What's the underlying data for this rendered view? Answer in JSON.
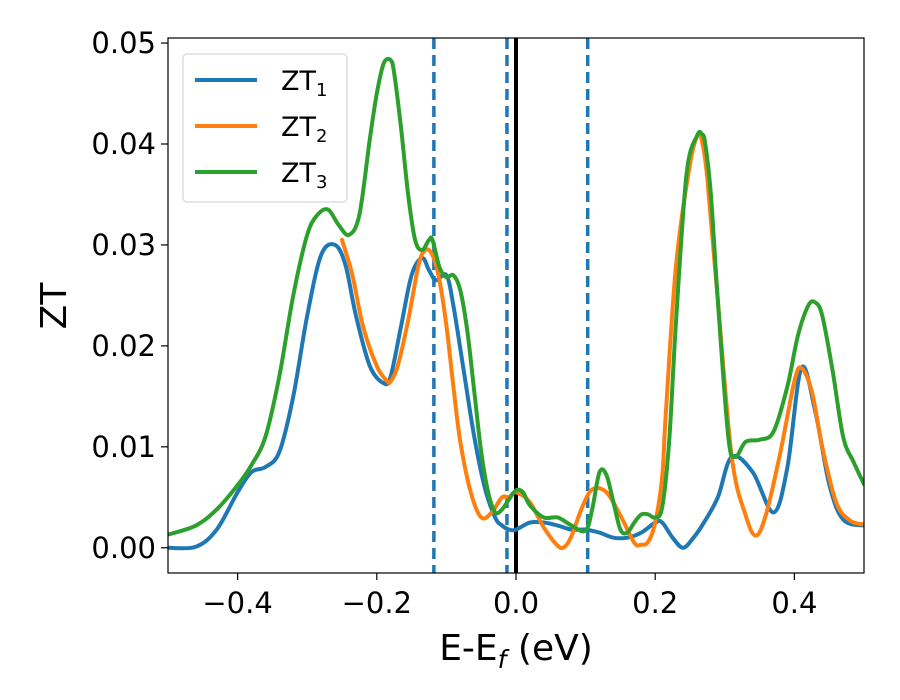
{
  "chart_data": {
    "type": "line",
    "xlabel": "E-E",
    "xlabel_sub": "f",
    "xlabel_unit": " (eV)",
    "ylabel": "ZT",
    "xlim": [
      -0.5,
      0.5
    ],
    "ylim": [
      -0.0025,
      0.0505
    ],
    "xticks": [
      -0.4,
      -0.2,
      0.0,
      0.2,
      0.4
    ],
    "xtick_labels": [
      "−0.4",
      "−0.2",
      "0.0",
      "0.2",
      "0.4"
    ],
    "yticks": [
      0.0,
      0.01,
      0.02,
      0.03,
      0.04,
      0.05
    ],
    "ytick_labels": [
      "0.00",
      "0.01",
      "0.02",
      "0.03",
      "0.04",
      "0.05"
    ],
    "grid": false,
    "legend_position": "top-left",
    "reference_lines": {
      "solid": {
        "x": 0.0,
        "color": "#000000"
      },
      "dashed": {
        "x": [
          -0.118,
          -0.013,
          0.103
        ],
        "color": "#1f77b4"
      }
    },
    "series": [
      {
        "name": "ZT",
        "name_sub": "1",
        "color": "#1f77b4",
        "x": [
          -0.5,
          -0.46,
          -0.43,
          -0.4,
          -0.38,
          -0.36,
          -0.34,
          -0.32,
          -0.3,
          -0.28,
          -0.26,
          -0.245,
          -0.23,
          -0.21,
          -0.19,
          -0.18,
          -0.165,
          -0.15,
          -0.135,
          -0.125,
          -0.115,
          -0.1,
          -0.09,
          -0.075,
          -0.06,
          -0.045,
          -0.03,
          -0.02,
          -0.01,
          0.0,
          0.02,
          0.04,
          0.06,
          0.08,
          0.1,
          0.12,
          0.14,
          0.16,
          0.18,
          0.2,
          0.21,
          0.225,
          0.24,
          0.255,
          0.27,
          0.29,
          0.31,
          0.34,
          0.37,
          0.39,
          0.41,
          0.43,
          0.45,
          0.47,
          0.5
        ],
        "y": [
          0.0,
          0.0001,
          0.0018,
          0.0055,
          0.0075,
          0.008,
          0.0095,
          0.015,
          0.023,
          0.029,
          0.03,
          0.028,
          0.023,
          0.018,
          0.0163,
          0.017,
          0.022,
          0.027,
          0.0287,
          0.0275,
          0.0265,
          0.027,
          0.024,
          0.0175,
          0.011,
          0.006,
          0.003,
          0.0022,
          0.0018,
          0.0018,
          0.0025,
          0.0025,
          0.0022,
          0.0018,
          0.0018,
          0.0015,
          0.001,
          0.001,
          0.0015,
          0.0025,
          0.0025,
          0.001,
          0.0,
          0.001,
          0.0025,
          0.005,
          0.009,
          0.0075,
          0.0035,
          0.008,
          0.0178,
          0.0135,
          0.0063,
          0.0028,
          0.0022
        ]
      },
      {
        "name": "ZT",
        "name_sub": "2",
        "color": "#ff7f0e",
        "x": [
          -0.25,
          -0.235,
          -0.22,
          -0.2,
          -0.185,
          -0.18,
          -0.17,
          -0.155,
          -0.14,
          -0.13,
          -0.12,
          -0.11,
          -0.1,
          -0.09,
          -0.08,
          -0.065,
          -0.05,
          -0.035,
          -0.02,
          -0.01,
          0.0,
          0.02,
          0.04,
          0.06,
          0.07,
          0.08,
          0.095,
          0.11,
          0.13,
          0.15,
          0.17,
          0.18,
          0.19,
          0.2,
          0.21,
          0.215,
          0.23,
          0.25,
          0.262,
          0.268,
          0.275,
          0.29,
          0.31,
          0.33,
          0.345,
          0.36,
          0.38,
          0.4,
          0.41,
          0.425,
          0.44,
          0.46,
          0.48,
          0.5
        ],
        "y": [
          0.0305,
          0.027,
          0.022,
          0.018,
          0.0165,
          0.0165,
          0.018,
          0.0225,
          0.028,
          0.0295,
          0.029,
          0.0265,
          0.022,
          0.016,
          0.0105,
          0.0055,
          0.003,
          0.0035,
          0.005,
          0.005,
          0.0055,
          0.0045,
          0.002,
          0.0002,
          0.0001,
          0.0012,
          0.004,
          0.0058,
          0.0055,
          0.0032,
          0.0005,
          0.0003,
          0.0006,
          0.0025,
          0.007,
          0.013,
          0.028,
          0.038,
          0.041,
          0.04,
          0.0365,
          0.0245,
          0.009,
          0.0032,
          0.0012,
          0.0035,
          0.0095,
          0.0165,
          0.0178,
          0.0155,
          0.01,
          0.0045,
          0.0027,
          0.0023
        ]
      },
      {
        "name": "ZT",
        "name_sub": "3",
        "color": "#2ca02c",
        "x": [
          -0.5,
          -0.46,
          -0.43,
          -0.4,
          -0.38,
          -0.36,
          -0.34,
          -0.32,
          -0.3,
          -0.285,
          -0.27,
          -0.255,
          -0.24,
          -0.225,
          -0.21,
          -0.2,
          -0.19,
          -0.18,
          -0.175,
          -0.165,
          -0.155,
          -0.145,
          -0.135,
          -0.125,
          -0.12,
          -0.11,
          -0.1,
          -0.09,
          -0.08,
          -0.07,
          -0.06,
          -0.05,
          -0.04,
          -0.03,
          -0.02,
          -0.01,
          0.0,
          0.01,
          0.02,
          0.04,
          0.06,
          0.08,
          0.1,
          0.11,
          0.12,
          0.13,
          0.14,
          0.15,
          0.16,
          0.17,
          0.18,
          0.19,
          0.2,
          0.21,
          0.22,
          0.23,
          0.245,
          0.26,
          0.267,
          0.272,
          0.28,
          0.29,
          0.305,
          0.315,
          0.33,
          0.35,
          0.37,
          0.39,
          0.405,
          0.42,
          0.43,
          0.44,
          0.455,
          0.47,
          0.485,
          0.5
        ],
        "y": [
          0.0013,
          0.0022,
          0.0038,
          0.0062,
          0.0082,
          0.011,
          0.017,
          0.025,
          0.031,
          0.033,
          0.0335,
          0.032,
          0.031,
          0.033,
          0.0405,
          0.045,
          0.048,
          0.0483,
          0.047,
          0.0415,
          0.035,
          0.0305,
          0.0295,
          0.0305,
          0.0305,
          0.0278,
          0.0268,
          0.027,
          0.0255,
          0.0215,
          0.0155,
          0.0095,
          0.0055,
          0.0035,
          0.0038,
          0.0048,
          0.0057,
          0.0055,
          0.0042,
          0.003,
          0.003,
          0.0022,
          0.0017,
          0.004,
          0.0075,
          0.0072,
          0.0045,
          0.0018,
          0.0015,
          0.0025,
          0.0033,
          0.0033,
          0.003,
          0.004,
          0.0105,
          0.0225,
          0.037,
          0.0408,
          0.041,
          0.04,
          0.035,
          0.0245,
          0.011,
          0.009,
          0.0105,
          0.0107,
          0.0115,
          0.016,
          0.021,
          0.024,
          0.0243,
          0.023,
          0.0175,
          0.011,
          0.0085,
          0.0063
        ]
      }
    ]
  }
}
